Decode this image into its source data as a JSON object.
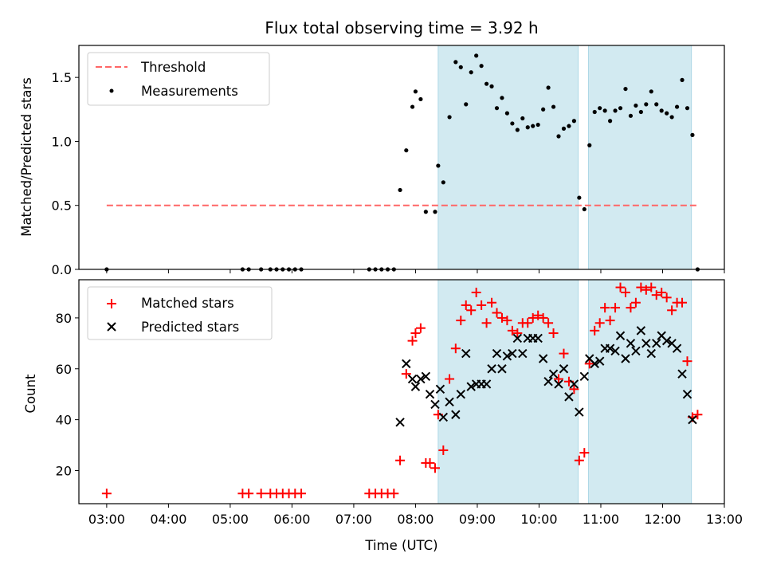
{
  "chart_data": {
    "title": "Flux total observing time = 3.92 h",
    "xlabel": "Time (UTC)",
    "x_ticks": [
      "03:00",
      "04:00",
      "05:00",
      "06:00",
      "07:00",
      "08:00",
      "09:00",
      "10:00",
      "11:00",
      "12:00",
      "13:00"
    ],
    "xlim": [
      "02:33",
      "13:00"
    ],
    "shaded_intervals": [
      {
        "start": "08:22",
        "end": "10:38"
      },
      {
        "start": "10:48",
        "end": "12:28"
      }
    ],
    "colors": {
      "shade": "#add8e6",
      "threshold": "#ff6666",
      "matched": "#ff0000",
      "predicted": "#000000",
      "measurements": "#000000"
    },
    "panels": [
      {
        "type": "scatter",
        "ylabel": "Matched/Predicted stars",
        "ylim": [
          0,
          1.75
        ],
        "y_ticks": [
          "0.0",
          "0.5",
          "1.0",
          "1.5"
        ],
        "legend": {
          "placement": "upper left",
          "entries": [
            "Threshold",
            "Measurements"
          ]
        },
        "threshold": {
          "name": "Threshold",
          "value": 0.5,
          "x_start": "03:00",
          "x_end": "12:35"
        },
        "series": [
          {
            "name": "Measurements",
            "marker": "dot",
            "points": [
              [
                "03:00",
                0.0
              ],
              [
                "05:12",
                0.0
              ],
              [
                "05:18",
                0.0
              ],
              [
                "05:30",
                0.0
              ],
              [
                "05:39",
                0.0
              ],
              [
                "05:45",
                0.0
              ],
              [
                "05:51",
                0.0
              ],
              [
                "05:57",
                0.0
              ],
              [
                "06:03",
                0.0
              ],
              [
                "06:09",
                0.0
              ],
              [
                "07:15",
                0.0
              ],
              [
                "07:21",
                0.0
              ],
              [
                "07:27",
                0.0
              ],
              [
                "07:33",
                0.0
              ],
              [
                "07:39",
                0.0
              ],
              [
                "07:45",
                0.62
              ],
              [
                "07:51",
                0.93
              ],
              [
                "07:57",
                1.27
              ],
              [
                "08:00",
                1.39
              ],
              [
                "08:05",
                1.33
              ],
              [
                "08:10",
                0.45
              ],
              [
                "08:19",
                0.45
              ],
              [
                "08:22",
                0.81
              ],
              [
                "08:27",
                0.68
              ],
              [
                "08:33",
                1.19
              ],
              [
                "08:39",
                1.62
              ],
              [
                "08:44",
                1.58
              ],
              [
                "08:49",
                1.29
              ],
              [
                "08:54",
                1.54
              ],
              [
                "08:59",
                1.67
              ],
              [
                "09:04",
                1.59
              ],
              [
                "09:09",
                1.45
              ],
              [
                "09:14",
                1.43
              ],
              [
                "09:19",
                1.26
              ],
              [
                "09:24",
                1.34
              ],
              [
                "09:29",
                1.22
              ],
              [
                "09:34",
                1.14
              ],
              [
                "09:39",
                1.09
              ],
              [
                "09:44",
                1.18
              ],
              [
                "09:49",
                1.11
              ],
              [
                "09:54",
                1.12
              ],
              [
                "09:59",
                1.13
              ],
              [
                "10:04",
                1.25
              ],
              [
                "10:09",
                1.42
              ],
              [
                "10:14",
                1.27
              ],
              [
                "10:19",
                1.04
              ],
              [
                "10:24",
                1.1
              ],
              [
                "10:29",
                1.12
              ],
              [
                "10:34",
                1.16
              ],
              [
                "10:39",
                0.56
              ],
              [
                "10:44",
                0.47
              ],
              [
                "10:49",
                0.97
              ],
              [
                "10:54",
                1.23
              ],
              [
                "10:59",
                1.26
              ],
              [
                "11:04",
                1.24
              ],
              [
                "11:09",
                1.16
              ],
              [
                "11:14",
                1.24
              ],
              [
                "11:19",
                1.26
              ],
              [
                "11:24",
                1.41
              ],
              [
                "11:29",
                1.2
              ],
              [
                "11:34",
                1.28
              ],
              [
                "11:39",
                1.23
              ],
              [
                "11:44",
                1.29
              ],
              [
                "11:49",
                1.39
              ],
              [
                "11:54",
                1.29
              ],
              [
                "11:59",
                1.24
              ],
              [
                "12:04",
                1.22
              ],
              [
                "12:09",
                1.19
              ],
              [
                "12:14",
                1.27
              ],
              [
                "12:19",
                1.48
              ],
              [
                "12:24",
                1.26
              ],
              [
                "12:29",
                1.05
              ],
              [
                "12:34",
                0.0
              ]
            ]
          }
        ]
      },
      {
        "type": "scatter",
        "ylabel": "Count",
        "ylim": [
          7,
          95
        ],
        "y_ticks": [
          "20",
          "40",
          "60",
          "80"
        ],
        "legend": {
          "placement": "upper left",
          "entries": [
            "Matched stars",
            "Predicted stars"
          ]
        },
        "series": [
          {
            "name": "Matched stars",
            "marker": "plus",
            "points": [
              [
                "03:00",
                11
              ],
              [
                "05:12",
                11
              ],
              [
                "05:18",
                11
              ],
              [
                "05:30",
                11
              ],
              [
                "05:39",
                11
              ],
              [
                "05:45",
                11
              ],
              [
                "05:51",
                11
              ],
              [
                "05:57",
                11
              ],
              [
                "06:03",
                11
              ],
              [
                "06:09",
                11
              ],
              [
                "07:15",
                11
              ],
              [
                "07:21",
                11
              ],
              [
                "07:27",
                11
              ],
              [
                "07:33",
                11
              ],
              [
                "07:39",
                11
              ],
              [
                "07:45",
                24
              ],
              [
                "07:51",
                58
              ],
              [
                "07:57",
                71
              ],
              [
                "08:00",
                74
              ],
              [
                "08:05",
                76
              ],
              [
                "08:10",
                23
              ],
              [
                "08:14",
                23
              ],
              [
                "08:19",
                21
              ],
              [
                "08:22",
                42
              ],
              [
                "08:27",
                28
              ],
              [
                "08:33",
                56
              ],
              [
                "08:39",
                68
              ],
              [
                "08:44",
                79
              ],
              [
                "08:49",
                85
              ],
              [
                "08:54",
                83
              ],
              [
                "08:59",
                90
              ],
              [
                "09:04",
                85
              ],
              [
                "09:09",
                78
              ],
              [
                "09:14",
                86
              ],
              [
                "09:19",
                82
              ],
              [
                "09:24",
                80
              ],
              [
                "09:29",
                79
              ],
              [
                "09:34",
                75
              ],
              [
                "09:39",
                74
              ],
              [
                "09:44",
                78
              ],
              [
                "09:49",
                78
              ],
              [
                "09:54",
                80
              ],
              [
                "09:59",
                81
              ],
              [
                "10:04",
                80
              ],
              [
                "10:09",
                78
              ],
              [
                "10:14",
                74
              ],
              [
                "10:19",
                56
              ],
              [
                "10:24",
                66
              ],
              [
                "10:29",
                55
              ],
              [
                "10:34",
                52
              ],
              [
                "10:39",
                24
              ],
              [
                "10:44",
                27
              ],
              [
                "10:49",
                62
              ],
              [
                "10:54",
                75
              ],
              [
                "10:59",
                78
              ],
              [
                "11:04",
                84
              ],
              [
                "11:09",
                79
              ],
              [
                "11:14",
                84
              ],
              [
                "11:19",
                92
              ],
              [
                "11:24",
                90
              ],
              [
                "11:29",
                84
              ],
              [
                "11:34",
                86
              ],
              [
                "11:39",
                92
              ],
              [
                "11:44",
                91
              ],
              [
                "11:49",
                92
              ],
              [
                "11:54",
                89
              ],
              [
                "11:59",
                90
              ],
              [
                "12:04",
                88
              ],
              [
                "12:09",
                83
              ],
              [
                "12:14",
                86
              ],
              [
                "12:19",
                86
              ],
              [
                "12:24",
                63
              ],
              [
                "12:29",
                41
              ],
              [
                "12:34",
                42
              ]
            ]
          },
          {
            "name": "Predicted stars",
            "marker": "x",
            "points": [
              [
                "07:45",
                39
              ],
              [
                "07:51",
                62
              ],
              [
                "07:57",
                56
              ],
              [
                "08:00",
                53
              ],
              [
                "08:05",
                56
              ],
              [
                "08:10",
                57
              ],
              [
                "08:14",
                50
              ],
              [
                "08:19",
                46
              ],
              [
                "08:24",
                52
              ],
              [
                "08:27",
                41
              ],
              [
                "08:33",
                47
              ],
              [
                "08:39",
                42
              ],
              [
                "08:44",
                50
              ],
              [
                "08:49",
                66
              ],
              [
                "08:54",
                53
              ],
              [
                "08:59",
                54
              ],
              [
                "09:04",
                54
              ],
              [
                "09:09",
                54
              ],
              [
                "09:14",
                60
              ],
              [
                "09:19",
                66
              ],
              [
                "09:24",
                60
              ],
              [
                "09:29",
                65
              ],
              [
                "09:34",
                66
              ],
              [
                "09:39",
                72
              ],
              [
                "09:44",
                66
              ],
              [
                "09:49",
                72
              ],
              [
                "09:54",
                72
              ],
              [
                "09:59",
                72
              ],
              [
                "10:04",
                64
              ],
              [
                "10:09",
                55
              ],
              [
                "10:14",
                58
              ],
              [
                "10:19",
                54
              ],
              [
                "10:24",
                60
              ],
              [
                "10:29",
                49
              ],
              [
                "10:34",
                54
              ],
              [
                "10:39",
                43
              ],
              [
                "10:44",
                57
              ],
              [
                "10:49",
                64
              ],
              [
                "10:54",
                62
              ],
              [
                "10:59",
                63
              ],
              [
                "11:04",
                68
              ],
              [
                "11:09",
                68
              ],
              [
                "11:14",
                67
              ],
              [
                "11:19",
                73
              ],
              [
                "11:24",
                64
              ],
              [
                "11:29",
                70
              ],
              [
                "11:34",
                67
              ],
              [
                "11:39",
                75
              ],
              [
                "11:44",
                70
              ],
              [
                "11:49",
                66
              ],
              [
                "11:54",
                70
              ],
              [
                "11:59",
                73
              ],
              [
                "12:04",
                71
              ],
              [
                "12:09",
                70
              ],
              [
                "12:14",
                68
              ],
              [
                "12:19",
                58
              ],
              [
                "12:24",
                50
              ],
              [
                "12:29",
                40
              ]
            ]
          }
        ]
      }
    ]
  }
}
